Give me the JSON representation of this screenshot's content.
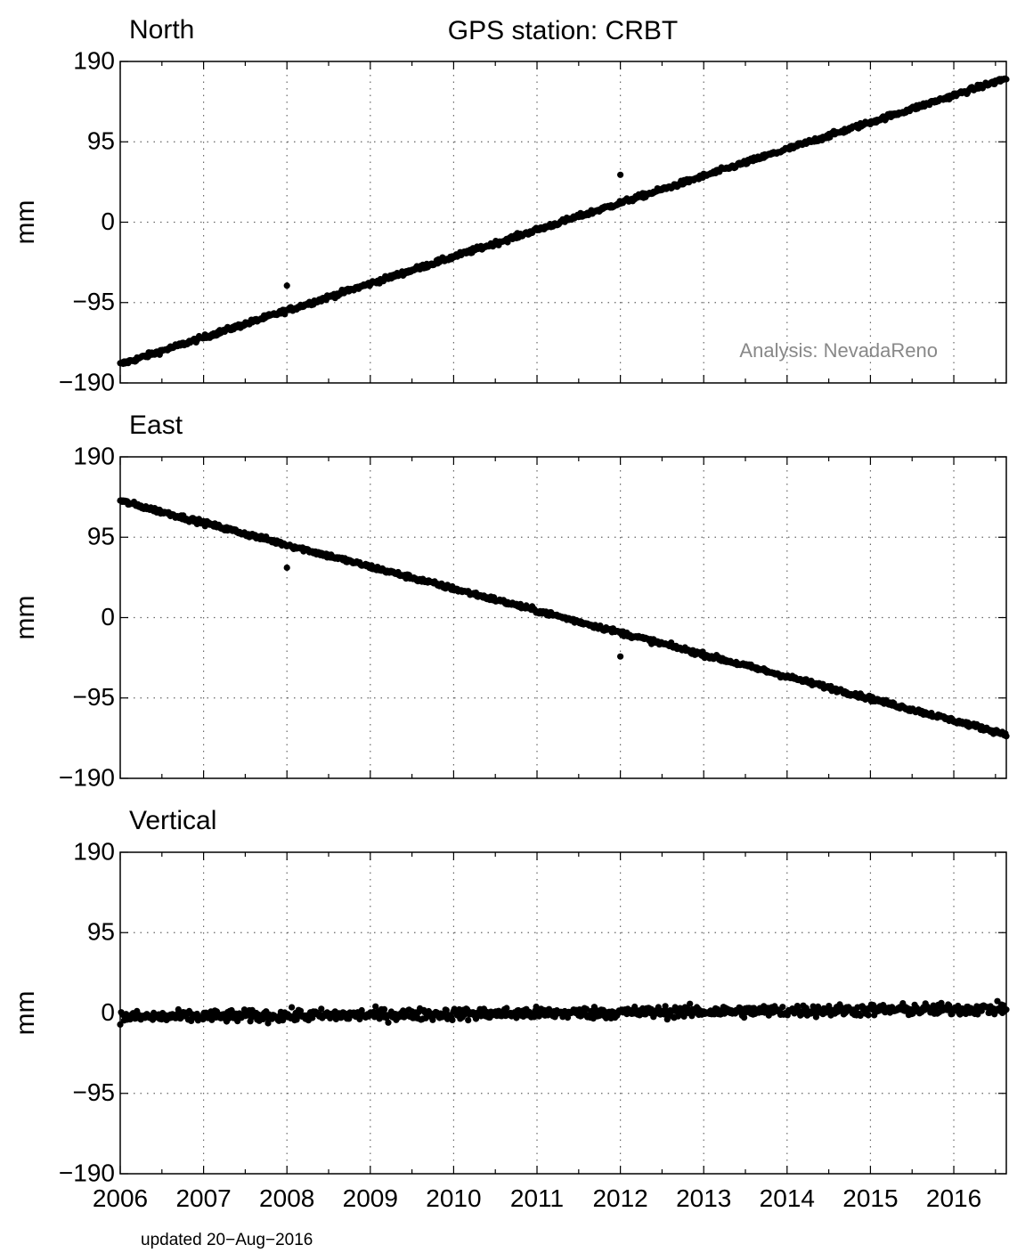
{
  "title": "GPS station: CRBT",
  "analysis_note": "Analysis: NevadaReno",
  "footer": "updated 20−Aug−2016",
  "chart_data": [
    {
      "type": "scatter",
      "title": "North",
      "ylabel": "mm",
      "xlim": [
        2006.0,
        2016.63
      ],
      "ylim": [
        -190,
        190
      ],
      "yticks": [
        190,
        95,
        0,
        -95,
        -190
      ],
      "ytick_labels": [
        "190",
        "95",
        "0",
        "−95",
        "−190"
      ],
      "xticks": [
        2006,
        2007,
        2008,
        2009,
        2010,
        2011,
        2012,
        2013,
        2014,
        2015,
        2016
      ],
      "xtick_labels": [],
      "grid": true,
      "trend": {
        "x": [
          2006.0,
          2016.63
        ],
        "y": [
          -168,
          170
        ]
      },
      "noise_mm": 2,
      "outliers": [
        {
          "x": 2008.0,
          "y": -75
        },
        {
          "x": 2012.0,
          "y": 56
        }
      ]
    },
    {
      "type": "scatter",
      "title": "East",
      "ylabel": "mm",
      "xlim": [
        2006.0,
        2016.63
      ],
      "ylim": [
        -190,
        190
      ],
      "yticks": [
        190,
        95,
        0,
        -95,
        -190
      ],
      "ytick_labels": [
        "190",
        "95",
        "0",
        "−95",
        "−190"
      ],
      "xticks": [
        2006,
        2007,
        2008,
        2009,
        2010,
        2011,
        2012,
        2013,
        2014,
        2015,
        2016
      ],
      "xtick_labels": [],
      "grid": true,
      "trend": {
        "x": [
          2006.0,
          2016.63
        ],
        "y": [
          138,
          -138
        ]
      },
      "noise_mm": 2,
      "outliers": [
        {
          "x": 2008.0,
          "y": 59
        },
        {
          "x": 2012.0,
          "y": -46
        }
      ]
    },
    {
      "type": "scatter",
      "title": "Vertical",
      "ylabel": "mm",
      "xlim": [
        2006.0,
        2016.63
      ],
      "ylim": [
        -190,
        190
      ],
      "yticks": [
        190,
        95,
        0,
        -95,
        -190
      ],
      "ytick_labels": [
        "190",
        "95",
        "0",
        "−95",
        "−190"
      ],
      "xticks": [
        2006,
        2007,
        2008,
        2009,
        2010,
        2011,
        2012,
        2013,
        2014,
        2015,
        2016
      ],
      "xtick_labels": [
        "2006",
        "2007",
        "2008",
        "2009",
        "2010",
        "2011",
        "2012",
        "2013",
        "2014",
        "2015",
        "2016"
      ],
      "grid": true,
      "trend": {
        "x": [
          2006.0,
          2016.63
        ],
        "y": [
          -5,
          5
        ]
      },
      "noise_mm": 5,
      "outliers": []
    }
  ]
}
